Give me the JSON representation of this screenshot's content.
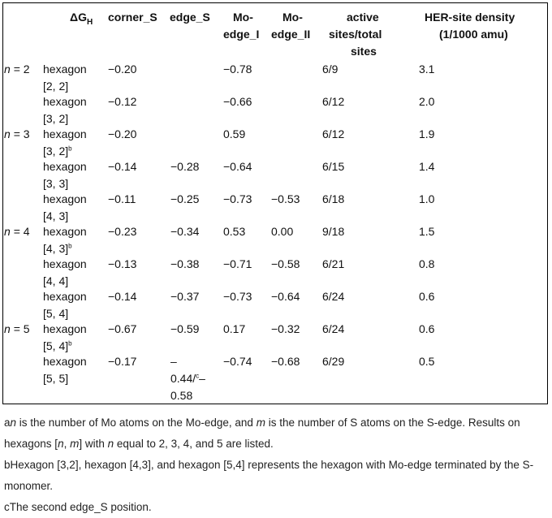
{
  "header": {
    "dg": "ΔG",
    "dg_sub": "H",
    "corner_s": "corner_S",
    "edge_s": "edge_S",
    "mo1_a": "Mo-",
    "mo1_b": "edge_I",
    "mo2_a": "Mo-",
    "mo2_b": "edge_II",
    "active_a": "active",
    "active_b": "sites/total",
    "active_c": "sites",
    "her_a": "HER-site density",
    "her_b": "(1/1000 amu)"
  },
  "rows": [
    {
      "n": "= 2",
      "sys1": "hexagon",
      "sys2": "[2, 2]",
      "sup": "",
      "corner": "−0.20",
      "edge": "",
      "edge2": "",
      "edge3": "",
      "mo1": "−0.78",
      "mo2": "",
      "active": "6/9",
      "her": "3.1"
    },
    {
      "n": "",
      "sys1": "hexagon",
      "sys2": "[3, 2]",
      "sup": "",
      "corner": "−0.12",
      "edge": "",
      "edge2": "",
      "edge3": "",
      "mo1": "−0.66",
      "mo2": "",
      "active": "6/12",
      "her": "2.0"
    },
    {
      "n": "= 3",
      "sys1": "hexagon",
      "sys2": "[3, 2]",
      "sup": "b",
      "corner": "−0.20",
      "edge": "",
      "edge2": "",
      "edge3": "",
      "mo1": "0.59",
      "mo2": "",
      "active": "6/12",
      "her": "1.9"
    },
    {
      "n": "",
      "sys1": "hexagon",
      "sys2": "[3, 3]",
      "sup": "",
      "corner": "−0.14",
      "edge": "−0.28",
      "edge2": "",
      "edge3": "",
      "mo1": "−0.64",
      "mo2": "",
      "active": "6/15",
      "her": "1.4"
    },
    {
      "n": "",
      "sys1": "hexagon",
      "sys2": "[4, 3]",
      "sup": "",
      "corner": "−0.11",
      "edge": "−0.25",
      "edge2": "",
      "edge3": "",
      "mo1": "−0.73",
      "mo2": "−0.53",
      "active": "6/18",
      "her": "1.0"
    },
    {
      "n": "= 4",
      "sys1": "hexagon",
      "sys2": "[4, 3]",
      "sup": "b",
      "corner": "−0.23",
      "edge": "−0.34",
      "edge2": "",
      "edge3": "",
      "mo1": "0.53",
      "mo2": "0.00",
      "active": "9/18",
      "her": "1.5"
    },
    {
      "n": "",
      "sys1": "hexagon",
      "sys2": "[4, 4]",
      "sup": "",
      "corner": "−0.13",
      "edge": "−0.38",
      "edge2": "",
      "edge3": "",
      "mo1": "−0.71",
      "mo2": "−0.58",
      "active": "6/21",
      "her": "0.8"
    },
    {
      "n": "",
      "sys1": "hexagon",
      "sys2": "[5, 4]",
      "sup": "",
      "corner": "−0.14",
      "edge": "−0.37",
      "edge2": "",
      "edge3": "",
      "mo1": "−0.73",
      "mo2": "−0.64",
      "active": "6/24",
      "her": "0.6"
    },
    {
      "n": "= 5",
      "sys1": "hexagon",
      "sys2": "[5, 4]",
      "sup": "b",
      "corner": "−0.67",
      "edge": "−0.59",
      "edge2": "",
      "edge3": "",
      "mo1": "0.17",
      "mo2": "−0.32",
      "active": "6/24",
      "her": "0.6"
    },
    {
      "n": "",
      "sys1": "hexagon",
      "sys2": "[5, 5]",
      "sup": "",
      "corner": "−0.17",
      "edge": "–",
      "edge2": "0.44/",
      "edge2_sup": "c",
      "edge2_tail": "–",
      "edge3": "0.58",
      "mo1": "−0.74",
      "mo2": "−0.68",
      "active": "6/29",
      "her": "0.5"
    }
  ],
  "notes": {
    "a_mark": "a",
    "a_n": "n",
    "a_text1": " is the number of Mo atoms on the Mo-edge, and ",
    "a_m": "m",
    "a_text2": " is the number of S atoms on the S-edge. Results on hexagons [",
    "a_n2": "n",
    "a_comma": ", ",
    "a_m2": "m",
    "a_text3": "] with ",
    "a_n3": "n",
    "a_text4": " equal to 2, 3, 4, and 5 are listed.",
    "b": "bHexagon [3,2], hexagon [4,3], and hexagon [5,4] represents the hexagon with Mo-edge terminated by the S-monomer.",
    "c": "cThe second edge_S position."
  }
}
